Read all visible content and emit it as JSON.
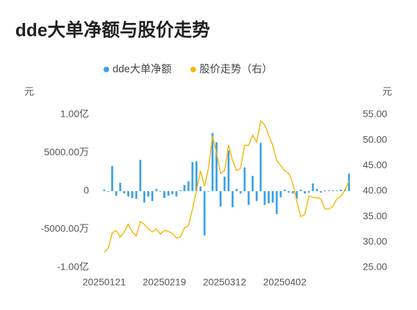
{
  "chart_data": {
    "type": "bar-line",
    "title": "dde大单净额与股价走势",
    "y_axis_label": "元",
    "y2_axis_label": "元",
    "categories": [
      "20250121",
      null,
      null,
      null,
      null,
      null,
      null,
      null,
      null,
      null,
      null,
      null,
      null,
      null,
      null,
      "20250219",
      null,
      null,
      null,
      null,
      null,
      null,
      null,
      null,
      null,
      null,
      null,
      null,
      null,
      null,
      "20250312",
      null,
      null,
      null,
      null,
      null,
      null,
      null,
      null,
      null,
      null,
      null,
      null,
      null,
      null,
      "20250402",
      null,
      null,
      null,
      null,
      null,
      null,
      null,
      null,
      null,
      null,
      null,
      null,
      null,
      null,
      null,
      null
    ],
    "series": [
      {
        "name": "dde大单净额",
        "type": "bar",
        "color": "#3ba1e8",
        "values": [
          200,
          0,
          3300,
          -600,
          1100,
          -300,
          -700,
          -900,
          -1000,
          4100,
          -1500,
          -700,
          -1300,
          300,
          0,
          -900,
          -600,
          -400,
          -700,
          100,
          800,
          1300,
          3800,
          3900,
          600,
          -5800,
          0,
          7600,
          6400,
          -2000,
          1900,
          5300,
          -2100,
          300,
          -300,
          3100,
          -1800,
          2000,
          -1300,
          6300,
          -1800,
          -1600,
          -1500,
          -3000,
          -800,
          200,
          -200,
          -300,
          -1000,
          200,
          -300,
          -200,
          1000,
          300,
          -200,
          100,
          100,
          100,
          100,
          200,
          200,
          2300
        ]
      },
      {
        "name": "股价走势（右）",
        "type": "line",
        "axis": "y2",
        "color": "#f5b60a",
        "values": [
          28.0,
          28.8,
          31.8,
          32.3,
          31.0,
          32.0,
          33.5,
          32.0,
          31.2,
          34.0,
          33.5,
          32.6,
          32.0,
          32.6,
          31.6,
          32.3,
          32.1,
          31.7,
          30.8,
          31.0,
          32.8,
          33.2,
          36.5,
          40.0,
          44.0,
          41.0,
          44.5,
          50.8,
          47.5,
          43.5,
          44.0,
          49.0,
          46.0,
          44.0,
          44.5,
          49.0,
          49.0,
          51.0,
          49.6,
          53.8,
          53.0,
          51.0,
          49.0,
          46.0,
          45.0,
          44.0,
          43.5,
          41.5,
          38.0,
          35.0,
          35.5,
          39.0,
          38.8,
          38.7,
          38.5,
          36.5,
          36.5,
          37.0,
          38.5,
          39.0,
          40.2,
          42.0
        ]
      }
    ],
    "ylim": [
      -10000,
      10000
    ],
    "yticks": [
      {
        "value": 10000,
        "label": "1.00亿"
      },
      {
        "value": 5000,
        "label": "5000.00万"
      },
      0,
      {
        "value": -5000,
        "label": "-5000.00万"
      },
      {
        "value": -10000,
        "label": "-1.00亿"
      }
    ],
    "y2lim": [
      25,
      55
    ],
    "y2ticks": [
      {
        "value": 55,
        "label": "55.00"
      },
      {
        "value": 50,
        "label": "50.00"
      },
      {
        "value": 45,
        "label": "45.00"
      },
      {
        "value": 40,
        "label": "40.00"
      },
      {
        "value": 35,
        "label": "35.00"
      },
      {
        "value": 30,
        "label": "30.00"
      },
      {
        "value": 25,
        "label": "25.00"
      }
    ],
    "legend": "top"
  }
}
